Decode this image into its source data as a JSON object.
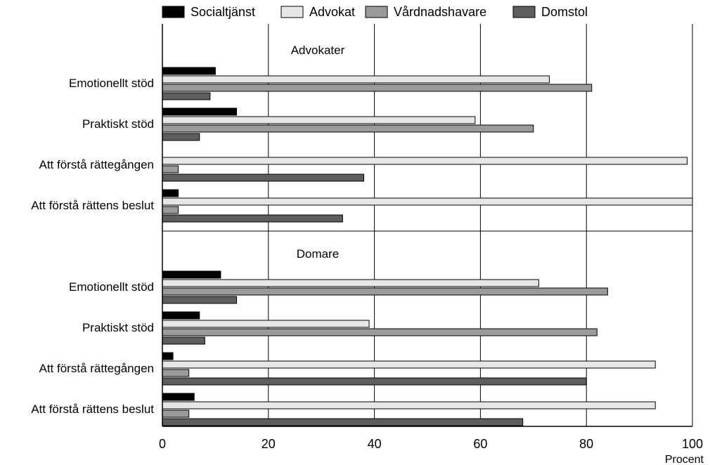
{
  "chart_data": {
    "type": "bar",
    "orientation": "horizontal",
    "legend": {
      "placement": "top",
      "entries": [
        {
          "name": "Socialtjänst",
          "color": "#000000"
        },
        {
          "name": "Advokat",
          "color": "#e6e6e6"
        },
        {
          "name": "Vårdnadshavare",
          "color": "#9a9a9a"
        },
        {
          "name": "Domstol",
          "color": "#5e5e5e"
        }
      ]
    },
    "xlabel": "Procent",
    "xlim": [
      0,
      100
    ],
    "xticks": [
      0,
      20,
      40,
      60,
      80,
      100
    ],
    "grid": true,
    "panels": [
      {
        "title": "Advokater",
        "categories": [
          "Emotionellt stöd",
          "Praktiskt stöd",
          "Att förstå rättegången",
          "Att förstå rättens beslut"
        ],
        "series": [
          {
            "name": "Socialtjänst",
            "values": [
              10,
              14,
              0,
              3
            ]
          },
          {
            "name": "Advokat",
            "values": [
              73,
              59,
              99,
              100
            ]
          },
          {
            "name": "Vårdnadshavare",
            "values": [
              81,
              70,
              3,
              3
            ]
          },
          {
            "name": "Domstol",
            "values": [
              9,
              7,
              38,
              34
            ]
          }
        ]
      },
      {
        "title": "Domare",
        "categories": [
          "Emotionellt stöd",
          "Praktiskt stöd",
          "Att förstå rättegången",
          "Att förstå rättens beslut"
        ],
        "series": [
          {
            "name": "Socialtjänst",
            "values": [
              11,
              7,
              2,
              6
            ]
          },
          {
            "name": "Advokat",
            "values": [
              71,
              39,
              93,
              93
            ]
          },
          {
            "name": "Vårdnadshavare",
            "values": [
              84,
              82,
              5,
              5
            ]
          },
          {
            "name": "Domstol",
            "values": [
              14,
              8,
              80,
              68
            ]
          }
        ]
      }
    ]
  }
}
